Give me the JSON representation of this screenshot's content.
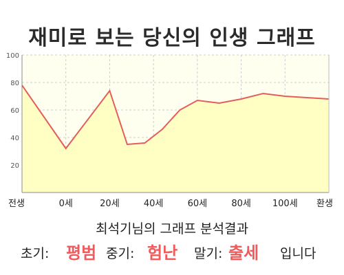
{
  "title": "재미로 보는 당신의 인생 그래프",
  "chart_data": {
    "type": "area",
    "title": "재미로 보는 당신의 인생 그래프",
    "xlabel": "",
    "ylabel": "",
    "ylim": [
      0,
      100
    ],
    "y_ticks": [
      20,
      40,
      60,
      80,
      100
    ],
    "x_ticks": [
      "전생",
      "0세",
      "20세",
      "40세",
      "60세",
      "80세",
      "100세",
      "환생"
    ],
    "x": [
      0,
      1,
      2,
      2.4,
      2.8,
      3.2,
      3.6,
      4.0,
      4.5,
      5.0,
      5.5,
      6.0,
      7.0
    ],
    "values": [
      78,
      32,
      74,
      35,
      36,
      46,
      60,
      67,
      65,
      68,
      72,
      70,
      68
    ],
    "grid": true,
    "line_color": "#e45c5c",
    "fill_color": "#ffffc4",
    "plot_background": "#fffff0"
  },
  "summary": "최석기님의 그래프 분석결과",
  "result": {
    "early_label": "초기:",
    "early_value": "평범",
    "middle_label": "중기:",
    "middle_value": "험난",
    "late_label": "말기:",
    "late_value": "출세",
    "ending": "입니다"
  }
}
